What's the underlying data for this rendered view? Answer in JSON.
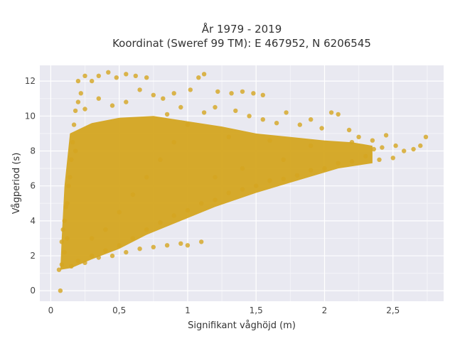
{
  "chart_data": {
    "type": "scatter",
    "title": "År 1979 - 2019",
    "subtitle": "Koordinat (Sweref 99 TM): E 467952, N 6206545",
    "xlabel": "Signifikant våghöjd (m)",
    "ylabel": "Vågperiod (s)",
    "xlim": [
      -0.08,
      2.87
    ],
    "ylim": [
      -0.6,
      12.9
    ],
    "x_ticks": [
      0,
      0.5,
      1,
      1.5,
      2,
      2.5
    ],
    "x_tick_labels": [
      "0",
      "0,5",
      "1",
      "1,5",
      "2",
      "2,5"
    ],
    "y_ticks": [
      0,
      2,
      4,
      6,
      8,
      10,
      12
    ],
    "y_tick_labels": [
      "0",
      "2",
      "4",
      "6",
      "8",
      "10",
      "12"
    ],
    "grid": true,
    "legend": "none",
    "marker_color": "#D4A520",
    "background_color": "#E9E9F1",
    "points": [
      [
        0.07,
        0.0
      ],
      [
        0.06,
        1.2
      ],
      [
        0.08,
        1.5
      ],
      [
        0.1,
        2.2
      ],
      [
        0.12,
        3.0
      ],
      [
        0.1,
        4.0
      ],
      [
        0.12,
        5.0
      ],
      [
        0.13,
        6.0
      ],
      [
        0.15,
        7.5
      ],
      [
        0.16,
        8.5
      ],
      [
        0.17,
        9.5
      ],
      [
        0.18,
        10.3
      ],
      [
        0.2,
        10.8
      ],
      [
        0.22,
        11.3
      ],
      [
        0.2,
        12.0
      ],
      [
        0.25,
        12.3
      ],
      [
        0.3,
        12.0
      ],
      [
        0.35,
        12.3
      ],
      [
        0.42,
        12.5
      ],
      [
        0.48,
        12.2
      ],
      [
        0.55,
        12.4
      ],
      [
        0.62,
        12.3
      ],
      [
        0.7,
        12.2
      ],
      [
        0.65,
        11.5
      ],
      [
        0.75,
        11.2
      ],
      [
        0.82,
        11.0
      ],
      [
        0.9,
        11.3
      ],
      [
        1.02,
        11.5
      ],
      [
        1.08,
        12.2
      ],
      [
        1.12,
        12.4
      ],
      [
        1.22,
        11.4
      ],
      [
        1.32,
        11.3
      ],
      [
        1.4,
        11.4
      ],
      [
        1.48,
        11.3
      ],
      [
        1.55,
        11.2
      ],
      [
        1.12,
        10.2
      ],
      [
        1.2,
        10.5
      ],
      [
        1.35,
        10.3
      ],
      [
        1.45,
        10.0
      ],
      [
        1.55,
        9.8
      ],
      [
        1.65,
        9.6
      ],
      [
        1.72,
        10.2
      ],
      [
        1.82,
        9.5
      ],
      [
        1.9,
        9.8
      ],
      [
        1.98,
        9.3
      ],
      [
        2.05,
        10.2
      ],
      [
        2.1,
        10.1
      ],
      [
        2.18,
        9.2
      ],
      [
        2.25,
        8.8
      ],
      [
        2.35,
        8.6
      ],
      [
        2.45,
        8.9
      ],
      [
        2.52,
        8.3
      ],
      [
        2.58,
        8.0
      ],
      [
        2.65,
        8.1
      ],
      [
        2.7,
        8.3
      ],
      [
        2.74,
        8.8
      ],
      [
        2.5,
        7.6
      ],
      [
        2.4,
        7.5
      ],
      [
        2.3,
        7.7
      ],
      [
        2.2,
        7.4
      ],
      [
        2.1,
        7.3
      ],
      [
        2.0,
        7.0
      ],
      [
        1.9,
        6.9
      ],
      [
        1.8,
        6.6
      ],
      [
        1.7,
        6.4
      ],
      [
        1.6,
        6.3
      ],
      [
        1.5,
        6.0
      ],
      [
        1.4,
        5.8
      ],
      [
        1.3,
        5.6
      ],
      [
        1.2,
        5.2
      ],
      [
        1.1,
        5.0
      ],
      [
        1.0,
        4.6
      ],
      [
        0.9,
        4.3
      ],
      [
        0.8,
        3.9
      ],
      [
        0.7,
        3.5
      ],
      [
        0.6,
        3.0
      ],
      [
        0.5,
        2.6
      ],
      [
        0.4,
        2.3
      ],
      [
        0.3,
        2.0
      ],
      [
        0.2,
        1.7
      ],
      [
        0.15,
        1.4
      ],
      [
        0.25,
        1.6
      ],
      [
        0.35,
        1.9
      ],
      [
        0.45,
        2.0
      ],
      [
        0.55,
        2.2
      ],
      [
        0.65,
        2.4
      ],
      [
        0.75,
        2.5
      ],
      [
        0.85,
        2.6
      ],
      [
        0.95,
        2.7
      ],
      [
        1.0,
        2.6
      ],
      [
        1.1,
        2.8
      ],
      [
        0.3,
        3.0
      ],
      [
        0.4,
        3.5
      ],
      [
        0.5,
        4.5
      ],
      [
        0.6,
        5.5
      ],
      [
        0.7,
        6.5
      ],
      [
        0.8,
        7.5
      ],
      [
        0.9,
        8.5
      ],
      [
        1.0,
        9.5
      ],
      [
        1.3,
        8.8
      ],
      [
        1.6,
        8.6
      ],
      [
        1.9,
        8.3
      ],
      [
        2.2,
        8.5
      ],
      [
        1.7,
        7.5
      ],
      [
        1.4,
        7.0
      ],
      [
        1.2,
        6.5
      ],
      [
        2.36,
        8.1
      ],
      [
        2.42,
        8.2
      ],
      [
        0.95,
        10.5
      ],
      [
        0.85,
        10.1
      ],
      [
        0.55,
        10.8
      ],
      [
        0.45,
        10.6
      ],
      [
        0.35,
        11.0
      ],
      [
        0.25,
        10.4
      ],
      [
        0.18,
        8.0
      ],
      [
        0.14,
        6.5
      ],
      [
        0.11,
        4.8
      ],
      [
        0.09,
        3.5
      ],
      [
        0.08,
        2.8
      ]
    ],
    "dense_band": {
      "upper": [
        [
          0.14,
          9.0
        ],
        [
          0.3,
          9.6
        ],
        [
          0.5,
          9.9
        ],
        [
          0.75,
          10.0
        ],
        [
          1.0,
          9.7
        ],
        [
          1.25,
          9.4
        ],
        [
          1.5,
          9.0
        ],
        [
          1.75,
          8.8
        ],
        [
          2.0,
          8.6
        ],
        [
          2.2,
          8.5
        ],
        [
          2.35,
          8.3
        ]
      ],
      "lower": [
        [
          2.35,
          7.3
        ],
        [
          2.1,
          7.0
        ],
        [
          1.8,
          6.3
        ],
        [
          1.5,
          5.6
        ],
        [
          1.2,
          4.8
        ],
        [
          0.95,
          4.0
        ],
        [
          0.7,
          3.2
        ],
        [
          0.5,
          2.4
        ],
        [
          0.3,
          1.8
        ],
        [
          0.15,
          1.3
        ],
        [
          0.07,
          1.2
        ],
        [
          0.08,
          3.0
        ],
        [
          0.1,
          6.0
        ]
      ]
    }
  }
}
